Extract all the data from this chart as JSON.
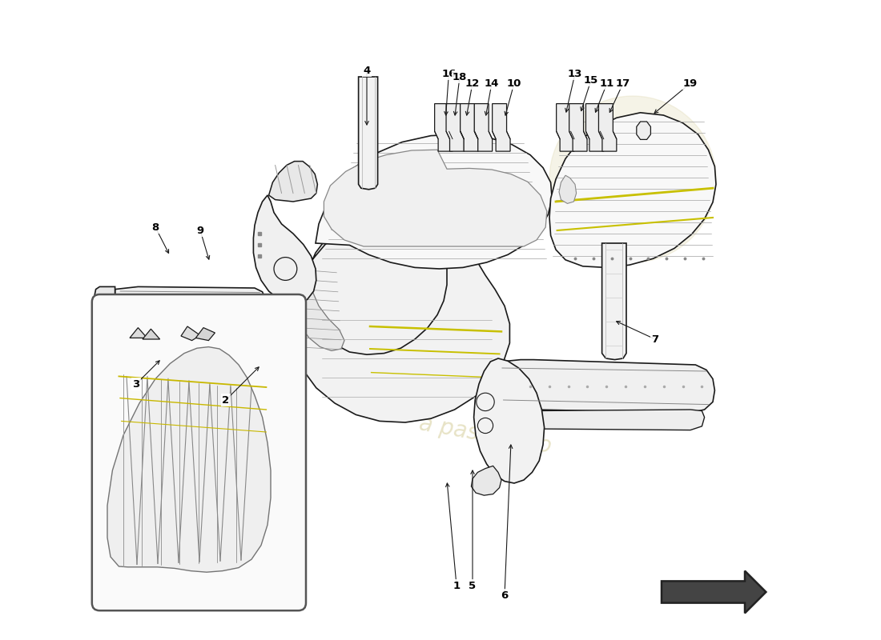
{
  "bg_color": "#ffffff",
  "lc": "#1a1a1a",
  "fc_light": "#f5f5f5",
  "fc_mid": "#eeeeee",
  "yc": "#c8c000",
  "wc": "#d8d0a0",
  "figsize": [
    11.0,
    8.0
  ],
  "dpi": 100,
  "labels": [
    [
      1,
      0.575,
      0.085,
      0.56,
      0.25
    ],
    [
      2,
      0.215,
      0.375,
      0.27,
      0.43
    ],
    [
      3,
      0.075,
      0.4,
      0.115,
      0.44
    ],
    [
      4,
      0.435,
      0.89,
      0.435,
      0.8
    ],
    [
      5,
      0.6,
      0.085,
      0.6,
      0.27
    ],
    [
      6,
      0.65,
      0.07,
      0.66,
      0.31
    ],
    [
      7,
      0.885,
      0.47,
      0.82,
      0.5
    ],
    [
      8,
      0.105,
      0.645,
      0.128,
      0.6
    ],
    [
      9,
      0.175,
      0.64,
      0.19,
      0.59
    ],
    [
      10,
      0.665,
      0.87,
      0.65,
      0.815
    ],
    [
      11,
      0.81,
      0.87,
      0.79,
      0.82
    ],
    [
      12,
      0.6,
      0.87,
      0.59,
      0.815
    ],
    [
      13,
      0.76,
      0.885,
      0.745,
      0.82
    ],
    [
      14,
      0.63,
      0.87,
      0.62,
      0.815
    ],
    [
      15,
      0.785,
      0.875,
      0.768,
      0.822
    ],
    [
      16,
      0.563,
      0.885,
      0.558,
      0.815
    ],
    [
      17,
      0.835,
      0.87,
      0.812,
      0.82
    ],
    [
      18,
      0.58,
      0.88,
      0.572,
      0.815
    ],
    [
      19,
      0.94,
      0.87,
      0.88,
      0.82
    ]
  ]
}
